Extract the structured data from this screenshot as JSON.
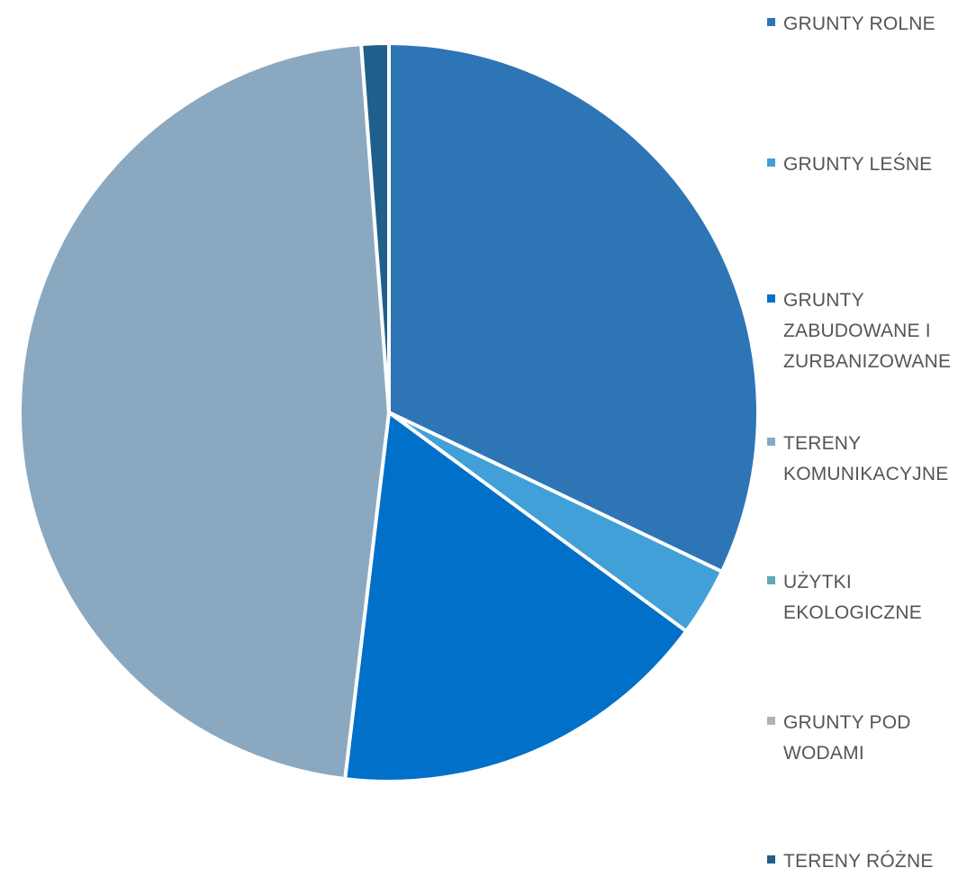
{
  "chart_data": {
    "type": "pie",
    "title": "",
    "start_angle_deg": 0,
    "direction": "clockwise",
    "slices": [
      {
        "label": "GRUNTY ROLNE",
        "value": 32.1,
        "color": "#2e75b6"
      },
      {
        "label": "GRUNTY LEŚNE",
        "value": 3.0,
        "color": "#41a0d8"
      },
      {
        "label": "GRUNTY ZABUDOWANE I ZURBANIZOWANE",
        "value": 16.8,
        "color": "#0070c8"
      },
      {
        "label": "TERENY KOMUNIKACYJNE",
        "value": 46.9,
        "color": "#8aa9c1"
      },
      {
        "label": "UŻYTKI EKOLOGICZNE",
        "value": 0.0,
        "color": "#5fa8b8"
      },
      {
        "label": "GRUNTY POD WODAMI",
        "value": 0.0,
        "color": "#a8b5bf"
      },
      {
        "label": "TERENY RÓŻNE",
        "value": 1.2,
        "color": "#1f5f8b"
      }
    ],
    "legend": {
      "position": "right"
    }
  }
}
